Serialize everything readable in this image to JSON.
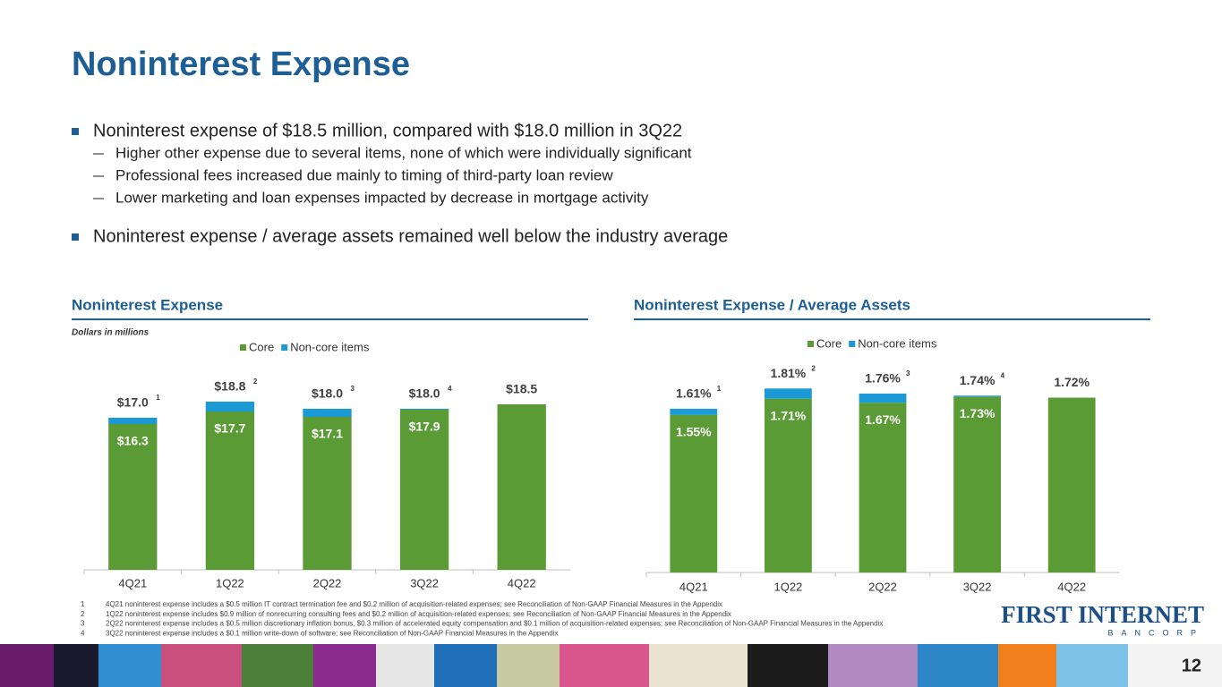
{
  "header": {
    "title": "Noninterest Expense"
  },
  "bullets": [
    {
      "text": "Noninterest expense of $18.5 million, compared with $18.0 million in 3Q22",
      "subs": [
        "Higher other expense due to several items, none of which were individually significant",
        "Professional fees increased due mainly to timing of third-party loan review",
        "Lower marketing and loan expenses impacted by decrease in mortgage activity"
      ]
    },
    {
      "text": "Noninterest expense / average assets remained well below the industry average",
      "subs": []
    }
  ],
  "chart_data": [
    {
      "type": "stacked-bar",
      "title": "Noninterest Expense",
      "subtitle": "Dollars in millions",
      "categories": [
        "4Q21",
        "1Q22",
        "2Q22",
        "3Q22",
        "4Q22"
      ],
      "series": [
        {
          "name": "Core",
          "color": "#5b9b35",
          "values": [
            16.3,
            17.7,
            17.1,
            17.9,
            18.5
          ],
          "value_labels": [
            "$16.3",
            "$17.7",
            "$17.1",
            "$17.9",
            null
          ]
        },
        {
          "name": "Non-core items",
          "color": "#1b9ad6",
          "values": [
            0.7,
            1.1,
            0.9,
            0.1,
            0
          ]
        }
      ],
      "totals": [
        17.0,
        18.8,
        18.0,
        18.0,
        18.5
      ],
      "total_labels": [
        "$17.0",
        "$18.8",
        "$18.0",
        "$18.0",
        "$18.5"
      ],
      "footnote_refs": [
        "1",
        "2",
        "3",
        "4",
        null
      ],
      "ylim": [
        0,
        25
      ],
      "legend": "top"
    },
    {
      "type": "stacked-bar",
      "title": "Noninterest Expense / Average Assets",
      "categories": [
        "4Q21",
        "1Q22",
        "2Q22",
        "3Q22",
        "4Q22"
      ],
      "series": [
        {
          "name": "Core",
          "color": "#5b9b35",
          "values": [
            1.55,
            1.71,
            1.67,
            1.73,
            1.72
          ],
          "value_labels": [
            "1.55%",
            "1.71%",
            "1.67%",
            "1.73%",
            null
          ]
        },
        {
          "name": "Non-core items",
          "color": "#1b9ad6",
          "values": [
            0.06,
            0.1,
            0.09,
            0.01,
            0
          ]
        }
      ],
      "totals": [
        1.61,
        1.81,
        1.76,
        1.74,
        1.72
      ],
      "total_labels": [
        "1.61%",
        "1.81%",
        "1.76%",
        "1.74%",
        "1.72%"
      ],
      "footnote_refs": [
        "1",
        "2",
        "3",
        "4",
        null
      ],
      "ylim": [
        0,
        2.2
      ],
      "legend": "top"
    }
  ],
  "footnotes": [
    {
      "number": "1",
      "text": "4Q21 noninterest expense includes a $0.5 million IT contract termination fee and $0.2 million of acquisition-related expenses; see Reconciliation of Non-GAAP Financial Measures in the Appendix"
    },
    {
      "number": "2",
      "text": "1Q22 noninterest expense includes $0.9 million of nonrecurring consulting fees and $0.2 million of acquisition-related expenses; see Reconciliation of Non-GAAP Financial Measures in the Appendix"
    },
    {
      "number": "3",
      "text": "2Q22 noninterest expense includes a $0.5 million discretionary inflation bonus, $0.3 million of accelerated equity compensation and $0.1 million of acquisition-related expenses; see Reconciliation of Non-GAAP Financial Measures in the Appendix"
    },
    {
      "number": "4",
      "text": "3Q22 noninterest expense includes a $0.1 million write-down of software; see Reconciliation of Non-GAAP Financial Measures in the Appendix"
    }
  ],
  "logo": {
    "name": "FIRST INTERNET",
    "sub": "BANCORP"
  },
  "page_number": "12"
}
